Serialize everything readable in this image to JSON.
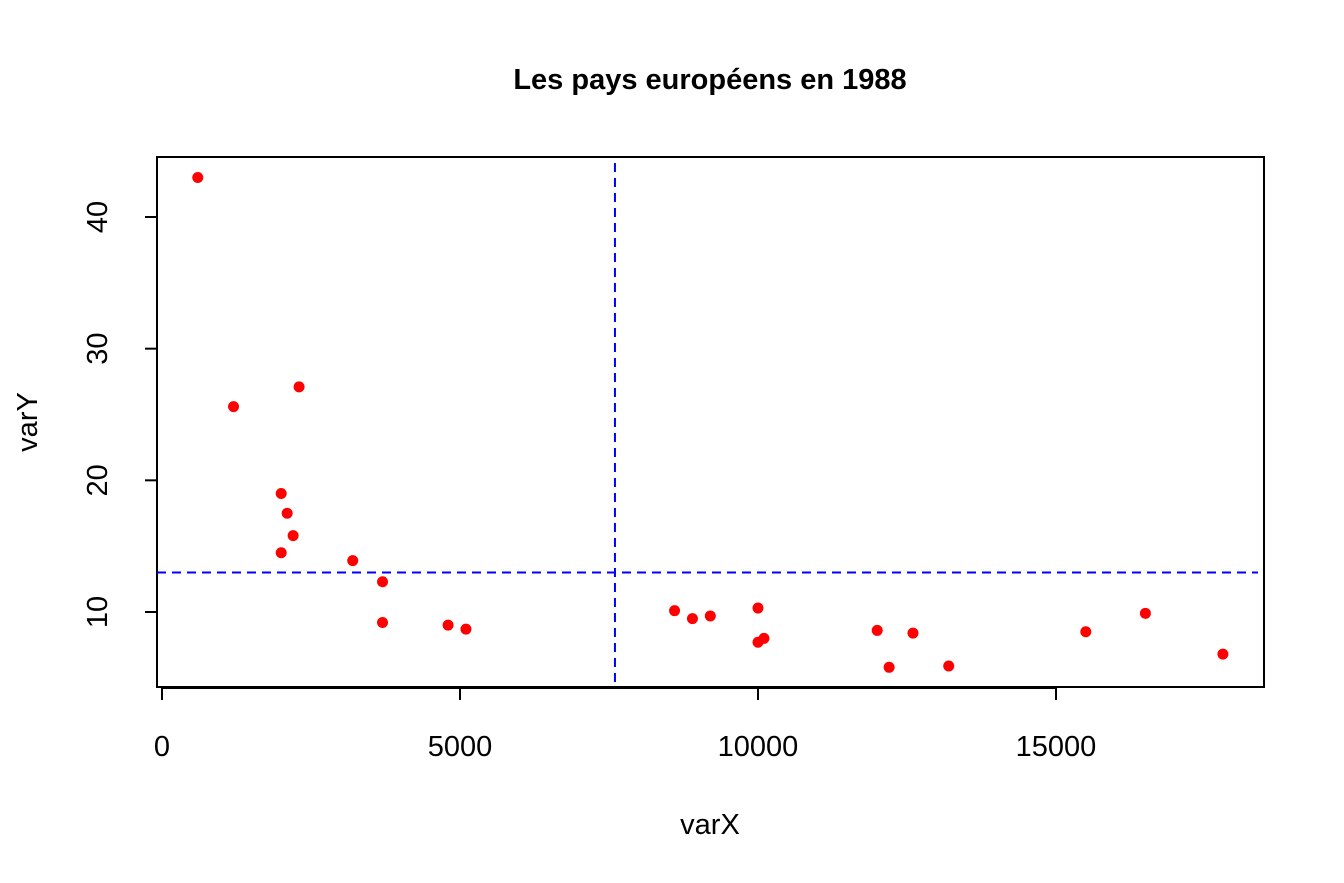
{
  "chart_data": {
    "type": "scatter",
    "title": "Les pays européens en 1988",
    "xlabel": "varX",
    "ylabel": "varY",
    "xlim": [
      0,
      18500
    ],
    "ylim": [
      4.5,
      44.5
    ],
    "x_ticks": [
      0,
      5000,
      10000,
      15000
    ],
    "y_ticks": [
      10,
      20,
      30,
      40
    ],
    "grid": false,
    "legend": false,
    "point_color": "#ff0000",
    "reference_line_color": "#0000ff",
    "reference_lines": {
      "vertical_x": 7600,
      "horizontal_y": 13
    },
    "series": [
      {
        "points": [
          {
            "x": 600,
            "y": 43
          },
          {
            "x": 1200,
            "y": 25.6
          },
          {
            "x": 2300,
            "y": 27.1
          },
          {
            "x": 2000,
            "y": 19
          },
          {
            "x": 2100,
            "y": 17.5
          },
          {
            "x": 2200,
            "y": 15.8
          },
          {
            "x": 2000,
            "y": 14.5
          },
          {
            "x": 3200,
            "y": 13.9
          },
          {
            "x": 3700,
            "y": 12.3
          },
          {
            "x": 3700,
            "y": 9.2
          },
          {
            "x": 4800,
            "y": 9
          },
          {
            "x": 5100,
            "y": 8.7
          },
          {
            "x": 8600,
            "y": 10.1
          },
          {
            "x": 8900,
            "y": 9.5
          },
          {
            "x": 9200,
            "y": 9.7
          },
          {
            "x": 10000,
            "y": 10.3
          },
          {
            "x": 10000,
            "y": 7.7
          },
          {
            "x": 10100,
            "y": 8
          },
          {
            "x": 12000,
            "y": 8.6
          },
          {
            "x": 12200,
            "y": 5.8
          },
          {
            "x": 12600,
            "y": 8.4
          },
          {
            "x": 13200,
            "y": 5.9
          },
          {
            "x": 15500,
            "y": 8.5
          },
          {
            "x": 16500,
            "y": 9.9
          },
          {
            "x": 17800,
            "y": 6.8
          }
        ]
      }
    ]
  }
}
